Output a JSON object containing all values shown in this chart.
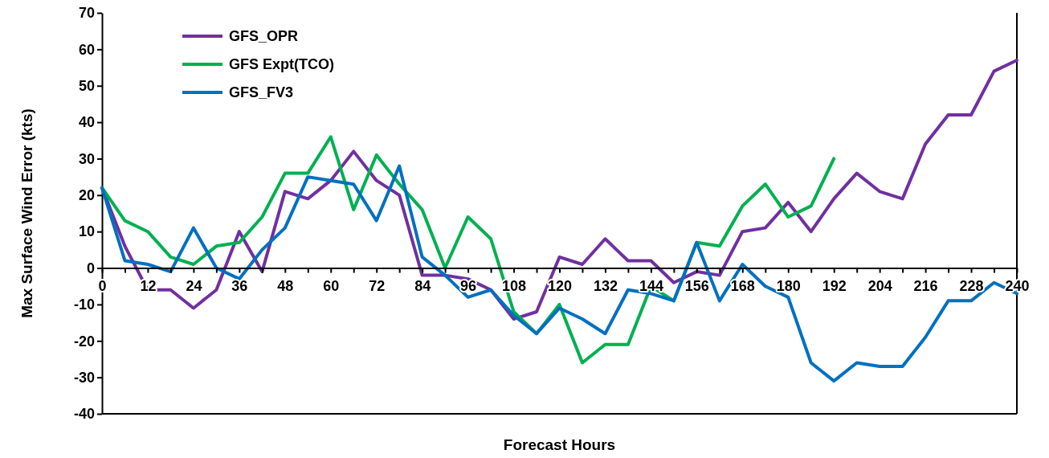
{
  "chart_data": {
    "type": "line",
    "xlabel": "Forecast Hours",
    "ylabel": "Max Surface Wind  Error (kts)",
    "x": [
      0,
      6,
      12,
      18,
      24,
      30,
      36,
      42,
      48,
      54,
      60,
      66,
      72,
      78,
      84,
      90,
      96,
      102,
      108,
      114,
      120,
      126,
      132,
      138,
      144,
      150,
      156,
      162,
      168,
      174,
      180,
      186,
      192,
      198,
      204,
      210,
      216,
      222,
      228,
      234,
      240
    ],
    "xlim": [
      0,
      240
    ],
    "xticks": [
      0,
      {
        "value": 6,
        "label": null
      },
      12,
      {
        "value": 18,
        "label": null
      },
      24,
      {
        "value": 30,
        "label": null
      },
      36,
      {
        "value": 42,
        "label": null
      },
      48,
      {
        "value": 54,
        "label": null
      },
      60,
      {
        "value": 66,
        "label": null
      },
      72,
      {
        "value": 78,
        "label": null
      },
      84,
      {
        "value": 90,
        "label": null
      },
      96,
      {
        "value": 102,
        "label": null
      },
      108,
      {
        "value": 114,
        "label": null
      },
      120,
      {
        "value": 126,
        "label": null
      },
      132,
      {
        "value": 138,
        "label": null
      },
      144,
      {
        "value": 150,
        "label": null
      },
      156,
      {
        "value": 162,
        "label": null
      },
      168,
      {
        "value": 174,
        "label": null
      },
      180,
      {
        "value": 186,
        "label": null
      },
      192,
      {
        "value": 198,
        "label": null
      },
      204,
      {
        "value": 210,
        "label": null
      },
      216,
      {
        "value": 222,
        "label": null
      },
      228,
      {
        "value": 234,
        "label": null
      },
      240
    ],
    "ylim": [
      -40,
      70
    ],
    "yticks": [
      -40,
      -30,
      -20,
      -10,
      0,
      10,
      20,
      30,
      40,
      50,
      60,
      70
    ],
    "grid": false,
    "legend": "top left",
    "marker": "none",
    "line_style": "solid",
    "series": [
      {
        "name": "GFS_OPR",
        "color": "#7030a0",
        "values": [
          22,
          6,
          -6,
          -6,
          -11,
          -6,
          10,
          -1,
          21,
          19,
          24,
          32,
          24,
          20,
          -2,
          -2,
          -3,
          -6,
          -14,
          -12,
          3,
          1,
          8,
          2,
          2,
          -4,
          -1,
          -2,
          10,
          11,
          18,
          10,
          19,
          26,
          21,
          19,
          34,
          42,
          42,
          54,
          57
        ]
      },
      {
        "name": "GFS Expt(TCO)",
        "color": "#00b050",
        "values": [
          22,
          13,
          10,
          3,
          1,
          6,
          7,
          14,
          26,
          26,
          36,
          16,
          31,
          23,
          16,
          0,
          14,
          8,
          -12,
          -18,
          -10,
          -26,
          -21,
          -21,
          -5,
          -9,
          7,
          6,
          17,
          23,
          14,
          17,
          30,
          null,
          null,
          null,
          null,
          null,
          null,
          null,
          null
        ]
      },
      {
        "name": "GFS_FV3",
        "color": "#0070c0",
        "values": [
          22,
          2,
          1,
          -1,
          11,
          0,
          -3,
          5,
          11,
          25,
          24,
          23,
          13,
          28,
          3,
          -2,
          -8,
          -6,
          -13,
          -18,
          -11,
          -14,
          -18,
          -6,
          -7,
          -9,
          7,
          -9,
          1,
          -5,
          -8,
          -26,
          -31,
          -26,
          -27,
          -27,
          -19,
          -9,
          -9,
          -4,
          -7
        ]
      }
    ]
  }
}
